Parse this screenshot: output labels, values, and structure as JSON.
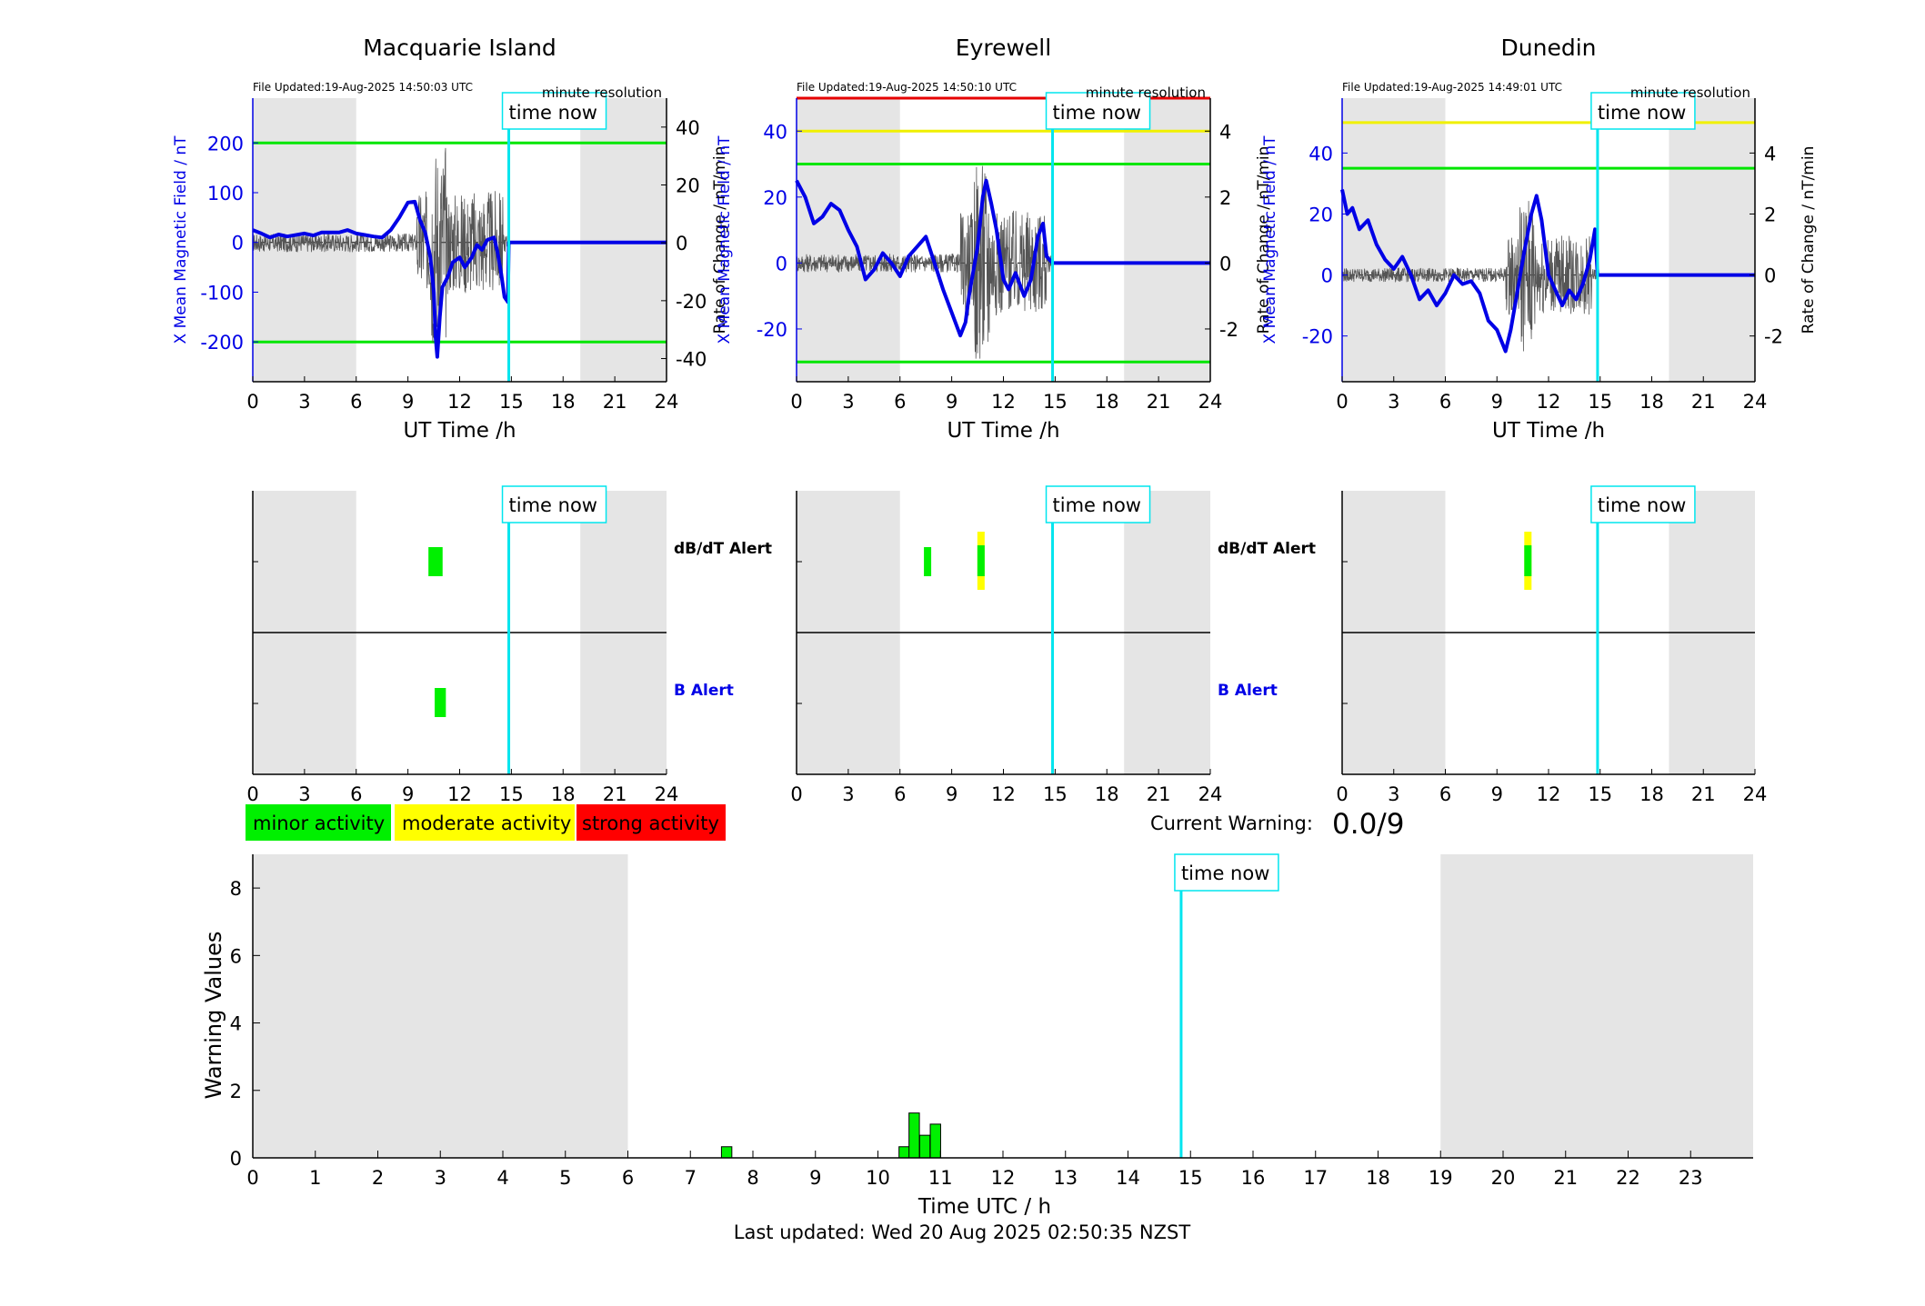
{
  "chart_data": [
    {
      "type": "line",
      "title": "Macquarie Island",
      "file_updated": "File Updated:19-Aug-2025 14:50:03 UTC",
      "resolution": "minute resolution",
      "xlabel": "UT Time /h",
      "ylabel_left": "X Mean Magnetic Field / nT",
      "ylabel_right": "Rate of Change / nT/min",
      "xlim": [
        0,
        24
      ],
      "xticks": [
        "0",
        "3",
        "6",
        "9",
        "12",
        "15",
        "18",
        "21",
        "24"
      ],
      "ylim_left": [
        -280,
        290
      ],
      "yticks_left": [
        "200",
        "100",
        "0",
        "-100",
        "-200"
      ],
      "ylim_right": [
        -48,
        50
      ],
      "yticks_right": [
        "40",
        "20",
        "0",
        "-20",
        "-40"
      ],
      "night_shading": [
        [
          0,
          6
        ],
        [
          19,
          24
        ]
      ],
      "thresholds": [
        {
          "value": 200,
          "color": "#00e600"
        },
        {
          "value": -200,
          "color": "#00e600"
        }
      ],
      "time_now_label": "time now",
      "time_now": 14.85,
      "series": [
        {
          "values": [
            [
              0,
              25
            ],
            [
              0.5,
              18
            ],
            [
              1,
              10
            ],
            [
              1.5,
              16
            ],
            [
              2,
              12
            ],
            [
              3,
              18
            ],
            [
              3.5,
              14
            ],
            [
              4,
              20
            ],
            [
              5,
              20
            ],
            [
              5.5,
              25
            ],
            [
              6,
              18
            ],
            [
              6.5,
              15
            ],
            [
              7,
              12
            ],
            [
              7.5,
              10
            ],
            [
              8,
              25
            ],
            [
              8.5,
              50
            ],
            [
              9,
              80
            ],
            [
              9.4,
              82
            ],
            [
              9.7,
              45
            ],
            [
              10,
              20
            ],
            [
              10.3,
              -30
            ],
            [
              10.5,
              -100
            ],
            [
              10.6,
              -190
            ],
            [
              10.7,
              -230
            ],
            [
              10.85,
              -150
            ],
            [
              11,
              -90
            ],
            [
              11.3,
              -70
            ],
            [
              11.6,
              -40
            ],
            [
              12,
              -30
            ],
            [
              12.3,
              -50
            ],
            [
              12.7,
              -30
            ],
            [
              13,
              -5
            ],
            [
              13.3,
              -15
            ],
            [
              13.6,
              5
            ],
            [
              14,
              10
            ],
            [
              14.2,
              -20
            ],
            [
              14.4,
              -60
            ],
            [
              14.6,
              -110
            ],
            [
              14.8,
              -120
            ],
            [
              14.85,
              0
            ],
            [
              24,
              0
            ]
          ]
        }
      ],
      "rate_range": [
        -40,
        40
      ]
    },
    {
      "type": "line",
      "title": "Eyrewell",
      "file_updated": "File Updated:19-Aug-2025 14:50:10 UTC",
      "resolution": "minute resolution",
      "xlabel": "UT Time /h",
      "ylabel_left": "X Mean Magnetic Field / nT",
      "ylabel_right": "Rate of Change / nT/min",
      "xlim": [
        0,
        24
      ],
      "xticks": [
        "0",
        "3",
        "6",
        "9",
        "12",
        "15",
        "18",
        "21",
        "24"
      ],
      "ylim_left": [
        -36,
        50
      ],
      "yticks_left": [
        "40",
        "20",
        "0",
        "-20"
      ],
      "ylim_right": [
        -3.6,
        5.0
      ],
      "yticks_right": [
        "4",
        "2",
        "0",
        "-2"
      ],
      "night_shading": [
        [
          0,
          6
        ],
        [
          19,
          24
        ]
      ],
      "thresholds": [
        {
          "value": 50,
          "color": "#e60000"
        },
        {
          "value": 40,
          "color": "#f0f000"
        },
        {
          "value": 30,
          "color": "#00e600"
        },
        {
          "value": -30,
          "color": "#00e600"
        }
      ],
      "time_now_label": "time now",
      "time_now": 14.85,
      "series": [
        {
          "values": [
            [
              0,
              25
            ],
            [
              0.5,
              20
            ],
            [
              1,
              12
            ],
            [
              1.5,
              14
            ],
            [
              2,
              18
            ],
            [
              2.5,
              16
            ],
            [
              3,
              10
            ],
            [
              3.5,
              5
            ],
            [
              4,
              -5
            ],
            [
              4.5,
              -2
            ],
            [
              5,
              3
            ],
            [
              5.5,
              0
            ],
            [
              6,
              -4
            ],
            [
              6.5,
              2
            ],
            [
              7,
              5
            ],
            [
              7.5,
              8
            ],
            [
              8,
              0
            ],
            [
              8.5,
              -8
            ],
            [
              9,
              -15
            ],
            [
              9.5,
              -22
            ],
            [
              9.8,
              -18
            ],
            [
              10,
              -10
            ],
            [
              10.5,
              5
            ],
            [
              10.8,
              20
            ],
            [
              11,
              25
            ],
            [
              11.3,
              18
            ],
            [
              11.6,
              10
            ],
            [
              12,
              -5
            ],
            [
              12.3,
              -8
            ],
            [
              12.7,
              -3
            ],
            [
              13.2,
              -10
            ],
            [
              13.6,
              -5
            ],
            [
              14,
              8
            ],
            [
              14.3,
              12
            ],
            [
              14.5,
              2
            ],
            [
              14.85,
              0
            ],
            [
              24,
              0
            ]
          ]
        }
      ],
      "rate_range": [
        -2.9,
        4.2
      ]
    },
    {
      "type": "line",
      "title": "Dunedin",
      "file_updated": "File Updated:19-Aug-2025 14:49:01 UTC",
      "resolution": "minute resolution",
      "xlabel": "UT Time /h",
      "ylabel_left": "X Mean Magnetic Field / nT",
      "ylabel_right": "Rate of Change / nT/min",
      "xlim": [
        0,
        24
      ],
      "xticks": [
        "0",
        "3",
        "6",
        "9",
        "12",
        "15",
        "18",
        "21",
        "24"
      ],
      "ylim_left": [
        -35,
        58
      ],
      "yticks_left": [
        "40",
        "20",
        "0",
        "-20"
      ],
      "ylim_right": [
        -3.5,
        5.8
      ],
      "yticks_right": [
        "4",
        "2",
        "0",
        "-2"
      ],
      "night_shading": [
        [
          0,
          6
        ],
        [
          19,
          24
        ]
      ],
      "thresholds": [
        {
          "value": 50,
          "color": "#f0f000"
        },
        {
          "value": 35,
          "color": "#00e600"
        }
      ],
      "time_now_label": "time now",
      "time_now": 14.85,
      "series": [
        {
          "values": [
            [
              0,
              28
            ],
            [
              0.3,
              20
            ],
            [
              0.6,
              22
            ],
            [
              1,
              15
            ],
            [
              1.5,
              18
            ],
            [
              2,
              10
            ],
            [
              2.5,
              5
            ],
            [
              3,
              2
            ],
            [
              3.5,
              6
            ],
            [
              4,
              0
            ],
            [
              4.5,
              -8
            ],
            [
              5,
              -5
            ],
            [
              5.5,
              -10
            ],
            [
              6,
              -6
            ],
            [
              6.5,
              0
            ],
            [
              7,
              -3
            ],
            [
              7.5,
              -2
            ],
            [
              8,
              -6
            ],
            [
              8.5,
              -15
            ],
            [
              9,
              -18
            ],
            [
              9.5,
              -25
            ],
            [
              9.8,
              -18
            ],
            [
              10.2,
              -5
            ],
            [
              10.6,
              8
            ],
            [
              11,
              20
            ],
            [
              11.3,
              26
            ],
            [
              11.6,
              18
            ],
            [
              12,
              0
            ],
            [
              12.4,
              -5
            ],
            [
              12.8,
              -10
            ],
            [
              13.2,
              -5
            ],
            [
              13.6,
              -8
            ],
            [
              14,
              -3
            ],
            [
              14.4,
              5
            ],
            [
              14.7,
              15
            ],
            [
              14.85,
              0
            ],
            [
              24,
              0
            ]
          ]
        }
      ],
      "rate_range": [
        -2.5,
        3.3
      ]
    }
  ],
  "alert_panels": [
    {
      "xticks": [
        "0",
        "3",
        "6",
        "9",
        "12",
        "15",
        "18",
        "21",
        "24"
      ],
      "time_now_label": "time now",
      "time_now": 14.85,
      "night_shading": [
        [
          0,
          6
        ],
        [
          19,
          24
        ]
      ],
      "dbdt_label": "dB/dT Alert",
      "b_label": "B Alert",
      "dbdt_events": [
        {
          "t": 10.4,
          "level": "minor"
        },
        {
          "t": 10.8,
          "level": "minor"
        }
      ],
      "b_events": [
        {
          "t": 10.55,
          "w": 0.65,
          "level": "minor"
        }
      ]
    },
    {
      "xticks": [
        "0",
        "3",
        "6",
        "9",
        "12",
        "15",
        "18",
        "21",
        "24"
      ],
      "time_now_label": "time now",
      "time_now": 14.85,
      "night_shading": [
        [
          0,
          6
        ],
        [
          19,
          24
        ]
      ],
      "dbdt_label": "dB/dT Alert",
      "b_label": "B Alert",
      "dbdt_events": [
        {
          "t": 7.6,
          "level": "minor"
        },
        {
          "t": 10.7,
          "level": "moderate"
        }
      ],
      "b_events": []
    },
    {
      "xticks": [
        "0",
        "3",
        "6",
        "9",
        "12",
        "15",
        "18",
        "21",
        "24"
      ],
      "time_now_label": "time now",
      "time_now": 14.85,
      "night_shading": [
        [
          0,
          6
        ],
        [
          19,
          24
        ]
      ],
      "dbdt_events": [
        {
          "t": 10.8,
          "level": "moderate"
        }
      ],
      "b_events": []
    }
  ],
  "legend": {
    "minor": {
      "label": "minor activity",
      "color": "#00f000"
    },
    "moderate": {
      "label": "moderate activity",
      "color": "#ffff00"
    },
    "strong": {
      "label": "strong activity",
      "color": "#ff0000"
    }
  },
  "current_warning": {
    "label": "Current Warning:",
    "value": "0.0/9"
  },
  "warning_chart": {
    "type": "bar",
    "ylabel": "Warning Values",
    "xlabel": "Time UTC / h",
    "xlim": [
      0,
      24
    ],
    "ylim": [
      0,
      9
    ],
    "xticks": [
      "0",
      "1",
      "2",
      "3",
      "4",
      "5",
      "6",
      "7",
      "8",
      "9",
      "10",
      "11",
      "12",
      "13",
      "14",
      "15",
      "16",
      "17",
      "18",
      "19",
      "20",
      "21",
      "22",
      "23"
    ],
    "yticks": [
      "0",
      "2",
      "4",
      "6",
      "8"
    ],
    "night_shading": [
      [
        0,
        6
      ],
      [
        19,
        24
      ]
    ],
    "time_now_label": "time now",
    "time_now": 14.85,
    "bars": [
      {
        "x": 7.58,
        "value": 0.33
      },
      {
        "x": 10.42,
        "value": 0.33
      },
      {
        "x": 10.58,
        "value": 1.33
      },
      {
        "x": 10.75,
        "value": 0.67
      },
      {
        "x": 10.92,
        "value": 1.0
      }
    ]
  },
  "footer": "Last updated: Wed 20 Aug 2025 02:50:35 NZST",
  "colors": {
    "field": "#0000e6",
    "rate": "#555555",
    "time_now": "#00e5ee",
    "night": "#e5e5e5"
  }
}
